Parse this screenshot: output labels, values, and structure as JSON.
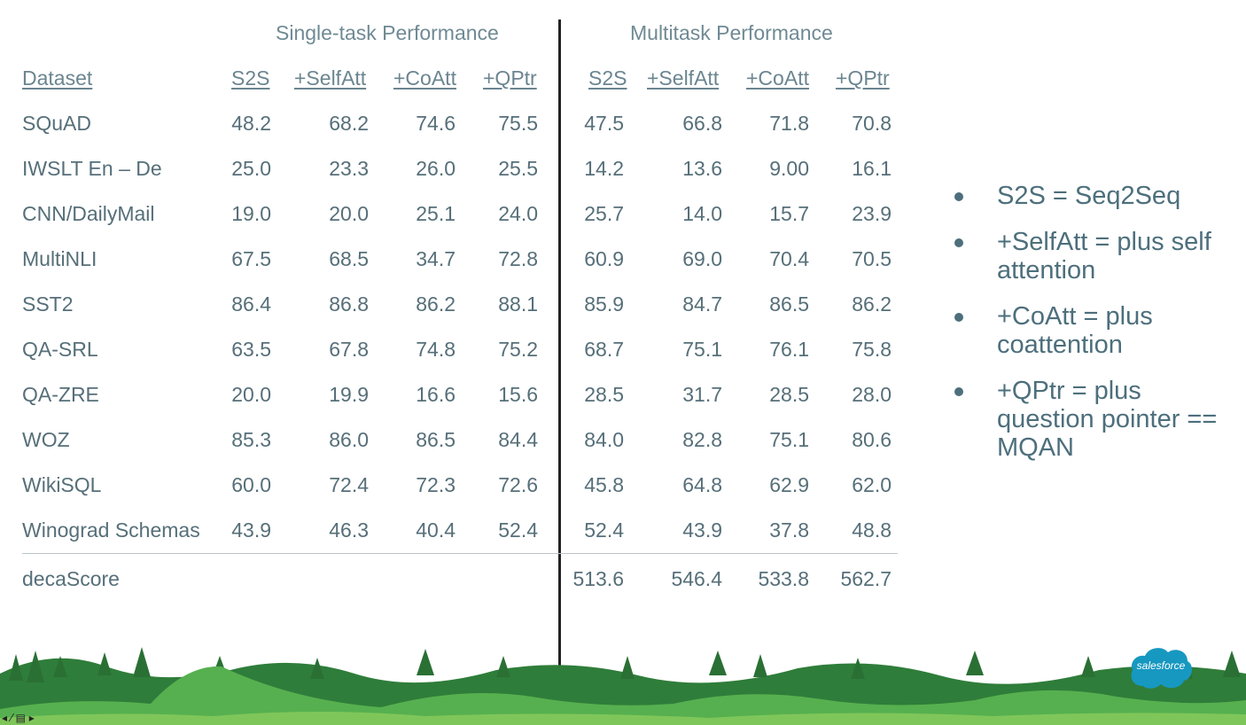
{
  "table": {
    "group_single": "Single-task Performance",
    "group_multi": "Multitask Performance",
    "col_dataset": "Dataset",
    "columns": [
      "S2S",
      "+SelfAtt",
      "+CoAtt",
      "+QPtr"
    ],
    "rows": [
      {
        "name": "SQuAD",
        "single": [
          "48.2",
          "68.2",
          "74.6",
          "75.5"
        ],
        "multi": [
          "47.5",
          "66.8",
          "71.8",
          "70.8"
        ]
      },
      {
        "name": "IWSLT En – De",
        "single": [
          "25.0",
          "23.3",
          "26.0",
          "25.5"
        ],
        "multi": [
          "14.2",
          "13.6",
          "9.00",
          "16.1"
        ]
      },
      {
        "name": "CNN/DailyMail",
        "single": [
          "19.0",
          "20.0",
          "25.1",
          "24.0"
        ],
        "multi": [
          "25.7",
          "14.0",
          "15.7",
          "23.9"
        ]
      },
      {
        "name": "MultiNLI",
        "single": [
          "67.5",
          "68.5",
          "34.7",
          "72.8"
        ],
        "multi": [
          "60.9",
          "69.0",
          "70.4",
          "70.5"
        ]
      },
      {
        "name": "SST2",
        "single": [
          "86.4",
          "86.8",
          "86.2",
          "88.1"
        ],
        "multi": [
          "85.9",
          "84.7",
          "86.5",
          "86.2"
        ]
      },
      {
        "name": "QA-SRL",
        "single": [
          "63.5",
          "67.8",
          "74.8",
          "75.2"
        ],
        "multi": [
          "68.7",
          "75.1",
          "76.1",
          "75.8"
        ]
      },
      {
        "name": "QA-ZRE",
        "single": [
          "20.0",
          "19.9",
          "16.6",
          "15.6"
        ],
        "multi": [
          "28.5",
          "31.7",
          "28.5",
          "28.0"
        ]
      },
      {
        "name": "WOZ",
        "single": [
          "85.3",
          "86.0",
          "86.5",
          "84.4"
        ],
        "multi": [
          "84.0",
          "82.8",
          "75.1",
          "80.6"
        ]
      },
      {
        "name": "WikiSQL",
        "single": [
          "60.0",
          "72.4",
          "72.3",
          "72.6"
        ],
        "multi": [
          "45.8",
          "64.8",
          "62.9",
          "62.0"
        ]
      },
      {
        "name": "Winograd Schemas",
        "single": [
          "43.9",
          "46.3",
          "40.4",
          "52.4"
        ],
        "multi": [
          "52.4",
          "43.9",
          "37.8",
          "48.8"
        ]
      }
    ],
    "total": {
      "name": "decaScore",
      "multi": [
        "513.6",
        "546.4",
        "533.8",
        "562.7"
      ]
    }
  },
  "legend": [
    "S2S = Seq2Seq",
    "+SelfAtt = plus self attention",
    "+CoAtt = plus coattention",
    "+QPtr = plus question pointer == MQAN"
  ],
  "logo": {
    "text": "salesforce",
    "color": "#1798c1"
  },
  "colors": {
    "text": "#566f79",
    "divider": "#222222",
    "grass": "#5cb85c"
  }
}
